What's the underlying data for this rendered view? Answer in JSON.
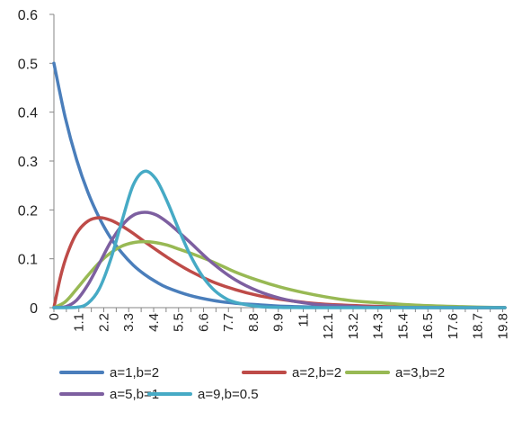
{
  "chart_data": {
    "type": "line",
    "title": "",
    "xlabel": "",
    "ylabel": "",
    "ylim": [
      0,
      0.6
    ],
    "yticks": [
      "0",
      "0.1",
      "0.2",
      "0.3",
      "0.4",
      "0.5",
      "0.6"
    ],
    "xlim": [
      0,
      19.9
    ],
    "xticks": [
      "0",
      "1.1",
      "2.2",
      "3.3",
      "4.4",
      "5.5",
      "6.6",
      "7.7",
      "8.8",
      "9.9",
      "11",
      "12.1",
      "13.2",
      "14.3",
      "15.4",
      "16.5",
      "17.6",
      "18.7",
      "19.8"
    ],
    "grid": false,
    "legend_position": "bottom",
    "series": [
      {
        "name": "a=1,b=2",
        "color": "#4a7ebb",
        "x": [
          0,
          0.5,
          1,
          1.5,
          2,
          2.5,
          3,
          3.5,
          4,
          4.5,
          5,
          6,
          7,
          8,
          9,
          10,
          12,
          14,
          16,
          18,
          19.9
        ],
        "values": [
          0.5,
          0.389,
          0.303,
          0.236,
          0.184,
          0.143,
          0.112,
          0.087,
          0.068,
          0.053,
          0.041,
          0.025,
          0.015,
          0.009,
          0.006,
          0.003,
          0.001,
          0.0005,
          0.0002,
          0.0001,
          0.0
        ]
      },
      {
        "name": "a=2,b=2",
        "color": "#be4b48",
        "x": [
          0,
          0.3,
          0.6,
          1,
          1.5,
          2,
          2.5,
          3,
          3.5,
          4,
          5,
          6,
          7,
          8,
          9,
          10,
          11,
          12,
          14,
          16,
          18,
          19.9
        ],
        "values": [
          0,
          0.065,
          0.111,
          0.152,
          0.177,
          0.184,
          0.179,
          0.167,
          0.152,
          0.135,
          0.103,
          0.075,
          0.053,
          0.037,
          0.025,
          0.017,
          0.011,
          0.007,
          0.003,
          0.001,
          0.0005,
          0.0
        ]
      },
      {
        "name": "a=3,b=2",
        "color": "#98b954",
        "x": [
          0,
          0.5,
          1,
          1.5,
          2,
          2.5,
          3,
          3.5,
          4,
          4.5,
          5,
          5.5,
          6,
          7,
          8,
          9,
          10,
          11,
          12,
          13,
          14,
          16,
          18,
          19.9
        ],
        "values": [
          0,
          0.012,
          0.038,
          0.066,
          0.092,
          0.112,
          0.126,
          0.133,
          0.135,
          0.133,
          0.128,
          0.12,
          0.112,
          0.094,
          0.073,
          0.056,
          0.042,
          0.031,
          0.022,
          0.015,
          0.011,
          0.005,
          0.002,
          0.0
        ]
      },
      {
        "name": "a=5,b=1",
        "color": "#7d5fa0",
        "x": [
          0,
          0.5,
          1,
          1.5,
          2,
          2.5,
          3,
          3.5,
          4,
          4.5,
          5,
          5.5,
          6,
          7,
          8,
          9,
          10,
          11,
          12,
          13,
          14,
          16,
          18,
          19.9
        ],
        "values": [
          0,
          0.0016,
          0.0153,
          0.047,
          0.09,
          0.134,
          0.168,
          0.189,
          0.195,
          0.19,
          0.175,
          0.155,
          0.134,
          0.091,
          0.057,
          0.034,
          0.019,
          0.01,
          0.005,
          0.003,
          0.001,
          0.0003,
          0.0001,
          0.0
        ]
      },
      {
        "name": "a=9,b=0.5",
        "color": "#46aac5",
        "x": [
          0,
          1,
          1.5,
          2,
          2.5,
          3,
          3.5,
          4,
          4.5,
          5,
          5.5,
          6,
          6.5,
          7,
          7.5,
          8,
          9,
          10,
          11,
          12,
          14,
          16,
          19.9
        ],
        "values": [
          0,
          0.0008,
          0.009,
          0.0385,
          0.098,
          0.177,
          0.251,
          0.279,
          0.263,
          0.217,
          0.161,
          0.109,
          0.068,
          0.039,
          0.021,
          0.011,
          0.0026,
          0.0005,
          0.0001,
          0.0,
          0.0,
          0.0,
          0.0
        ]
      }
    ]
  }
}
